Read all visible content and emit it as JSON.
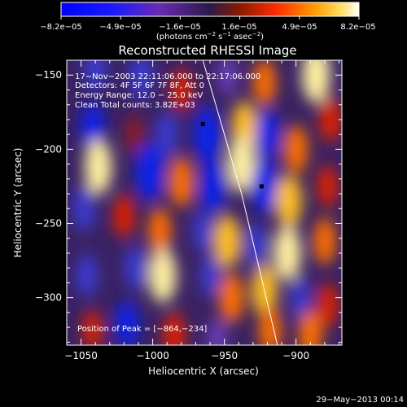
{
  "colorbar": {
    "ticks": [
      "−8.2e−05",
      "−4.9e−05",
      "−1.6e−05",
      "1.6e−05",
      "4.9e−05",
      "8.2e−05"
    ],
    "units_prefix": "(photons cm",
    "units_exp1": "−2",
    "units_mid1": " s",
    "units_exp2": "−1",
    "units_mid2": " asec",
    "units_exp3": "−2",
    "units_suffix": ")"
  },
  "chart_data": {
    "type": "heatmap",
    "title": "Reconstructed RHESSI Image",
    "xlabel": "Heliocentric X (arcsec)",
    "ylabel": "Heliocentric Y (arcsec)",
    "xlim": [
      -1060,
      -868
    ],
    "ylim": [
      -332,
      -140
    ],
    "x_ticks": [
      -1050,
      -1000,
      -950,
      -900
    ],
    "x_tick_labels": [
      "−1050",
      "−1000",
      "−950",
      "−900"
    ],
    "y_ticks": [
      -150,
      -200,
      -250,
      -300
    ],
    "y_tick_labels": [
      "−150",
      "−200",
      "−250",
      "−300"
    ],
    "value_range": [
      -8.2e-05,
      8.2e-05
    ],
    "info_lines": [
      "17−Nov−2003 22:11:06.000 to 22:17:06.000",
      "Detectors: 4F 5F 6F 7F 8F, Att 0",
      "Energy Range: 12.0 − 25.0 keV",
      "Clean    Total counts: 3.82E+03"
    ],
    "peak_label": "Position of Peak = [−864,−234]",
    "markers": [
      {
        "x": -965,
        "y": -183
      },
      {
        "x": -924,
        "y": -225
      }
    ],
    "limb": [
      {
        "x": -965,
        "y": -140
      },
      {
        "x": -938,
        "y": -230
      },
      {
        "x": -913,
        "y": -332
      }
    ],
    "blobs": [
      {
        "x": -1040,
        "y": -145,
        "v": -4e-05
      },
      {
        "x": -1008,
        "y": -150,
        "v": -4.5e-05
      },
      {
        "x": -980,
        "y": -160,
        "v": 3e-05
      },
      {
        "x": -948,
        "y": -150,
        "v": -2.5e-05
      },
      {
        "x": -922,
        "y": -155,
        "v": 4.5e-05
      },
      {
        "x": -886,
        "y": -150,
        "v": 7.5e-05
      },
      {
        "x": -1042,
        "y": -185,
        "v": -5e-05
      },
      {
        "x": -1013,
        "y": -190,
        "v": 2e-05
      },
      {
        "x": -990,
        "y": -190,
        "v": -4e-05
      },
      {
        "x": -962,
        "y": -190,
        "v": -7.5e-05
      },
      {
        "x": -936,
        "y": -185,
        "v": 6e-05
      },
      {
        "x": -920,
        "y": -190,
        "v": -5.5e-05
      },
      {
        "x": -900,
        "y": -200,
        "v": 5e-05
      },
      {
        "x": -876,
        "y": -180,
        "v": 4e-05
      },
      {
        "x": -1038,
        "y": -212,
        "v": 7e-05
      },
      {
        "x": -1002,
        "y": -215,
        "v": -8e-05
      },
      {
        "x": -980,
        "y": -222,
        "v": 5.5e-05
      },
      {
        "x": -958,
        "y": -225,
        "v": -6.5e-05
      },
      {
        "x": -938,
        "y": -210,
        "v": 7.5e-05
      },
      {
        "x": -922,
        "y": -225,
        "v": -7e-05
      },
      {
        "x": -905,
        "y": -235,
        "v": 6.5e-05
      },
      {
        "x": -878,
        "y": -225,
        "v": 3e-05
      },
      {
        "x": -1048,
        "y": -240,
        "v": -4e-05
      },
      {
        "x": -1020,
        "y": -245,
        "v": 3.5e-05
      },
      {
        "x": -995,
        "y": -255,
        "v": 4.5e-05
      },
      {
        "x": -965,
        "y": -255,
        "v": -3e-05
      },
      {
        "x": -948,
        "y": -262,
        "v": 6.5e-05
      },
      {
        "x": -928,
        "y": -265,
        "v": -4e-05
      },
      {
        "x": -906,
        "y": -270,
        "v": 7e-05
      },
      {
        "x": -880,
        "y": -262,
        "v": 4.5e-05
      },
      {
        "x": -1046,
        "y": -285,
        "v": -3.5e-05
      },
      {
        "x": -1012,
        "y": -280,
        "v": -4e-05
      },
      {
        "x": -993,
        "y": -285,
        "v": 7e-05
      },
      {
        "x": -960,
        "y": -285,
        "v": -3e-05
      },
      {
        "x": -945,
        "y": -300,
        "v": 5.5e-05
      },
      {
        "x": -922,
        "y": -295,
        "v": 6e-05
      },
      {
        "x": -897,
        "y": -300,
        "v": -3e-05
      },
      {
        "x": -878,
        "y": -305,
        "v": 3.5e-05
      },
      {
        "x": -1042,
        "y": -322,
        "v": 2.5e-05
      },
      {
        "x": -1018,
        "y": -318,
        "v": -5e-05
      },
      {
        "x": -985,
        "y": -325,
        "v": 4e-05
      },
      {
        "x": -955,
        "y": -328,
        "v": -2.5e-05
      },
      {
        "x": -918,
        "y": -322,
        "v": 4.5e-05
      },
      {
        "x": -890,
        "y": -325,
        "v": 5e-05
      }
    ]
  },
  "footer": {
    "timestamp": "29−May−2013 00:14"
  }
}
